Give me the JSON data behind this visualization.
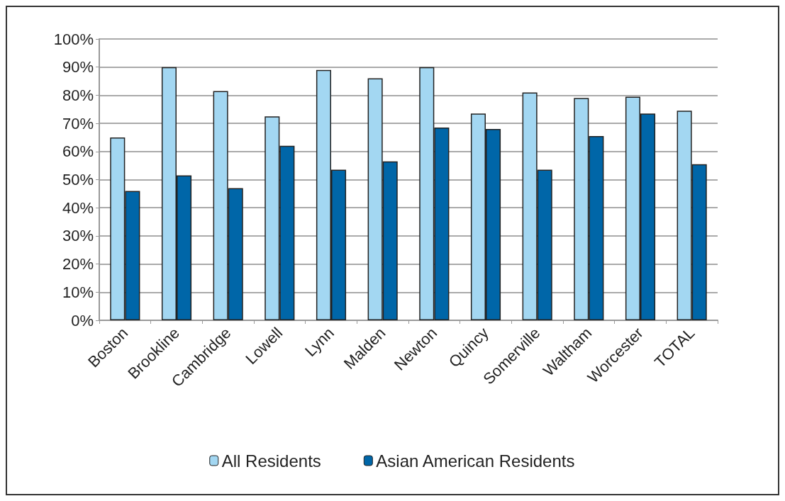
{
  "chart_data": {
    "type": "bar",
    "categories": [
      "Boston",
      "Brookline",
      "Cambridge",
      "Lowell",
      "Lynn",
      "Malden",
      "Newton",
      "Quincy",
      "Somerville",
      "Waltham",
      "Worcester",
      "TOTAL"
    ],
    "series": [
      {
        "name": "All Residents",
        "color": "#a3d7f2",
        "values": [
          65,
          90,
          81.5,
          72.5,
          89,
          86,
          90,
          73.5,
          81,
          79,
          79.5,
          74.5
        ]
      },
      {
        "name": "Asian American Residents",
        "color": "#0066a8",
        "values": [
          46,
          51.5,
          47,
          62,
          53.5,
          56.5,
          68.5,
          68,
          53.5,
          65.5,
          73.5,
          55.5
        ]
      }
    ],
    "ylim": [
      0,
      100
    ],
    "yticks": [
      {
        "value": 0,
        "label": "0%"
      },
      {
        "value": 10,
        "label": "10%"
      },
      {
        "value": 20,
        "label": "20%"
      },
      {
        "value": 30,
        "label": "30%"
      },
      {
        "value": 40,
        "label": "40%"
      },
      {
        "value": 50,
        "label": "50%"
      },
      {
        "value": 60,
        "label": "60%"
      },
      {
        "value": 70,
        "label": "70%"
      },
      {
        "value": 80,
        "label": "80%"
      },
      {
        "value": 90,
        "label": "90%"
      },
      {
        "value": 100,
        "label": "100%"
      }
    ],
    "grid": "y",
    "legend": "bottom"
  }
}
